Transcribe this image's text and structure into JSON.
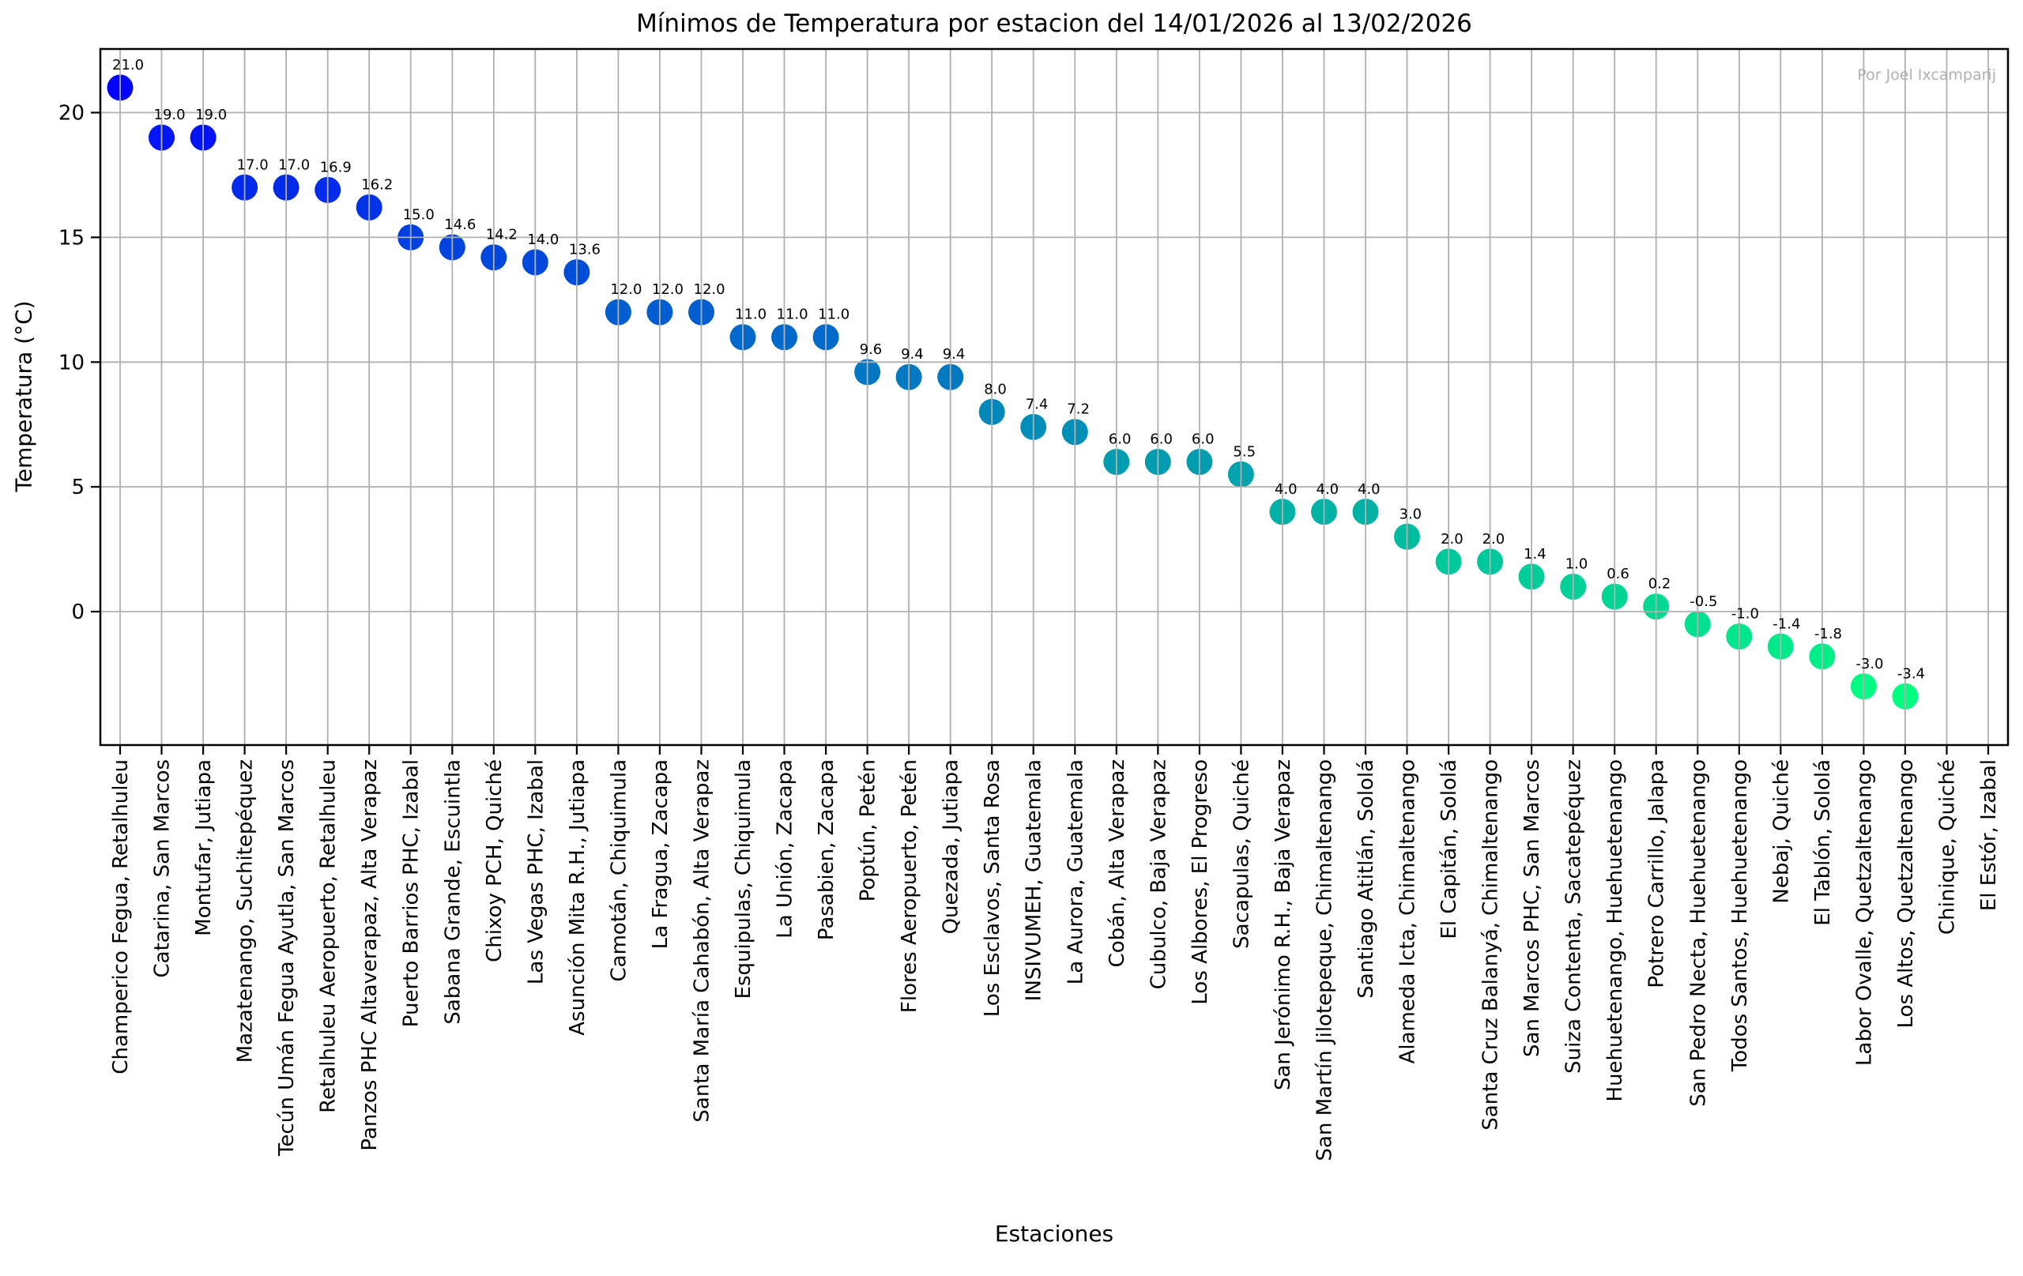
{
  "chart_data": {
    "type": "scatter",
    "title": "Mínimos de Temperatura por estacion del 14/01/2026 al 13/02/2026",
    "xlabel": "Estaciones",
    "ylabel": "Temperatura (°C)",
    "watermark": "Por Joel Ixcamparij",
    "ylim": [
      -5.35,
      22.55
    ],
    "yticks": [
      0,
      5,
      10,
      15,
      20
    ],
    "ytick_labels": [
      "0",
      "5",
      "10",
      "15",
      "20"
    ],
    "grid": true,
    "legend": "none",
    "colormap": "winter (highest temp = blue #0000ff, lowest temp = green #00ff80)",
    "value_label_format": "one decimal above each point",
    "categories": [
      "Champerico Fegua, Retalhuleu",
      "Catarina, San Marcos",
      "Montufar, Jutiapa",
      "Mazatenango, Suchitepéquez",
      "Tecún Umán Fegua Ayutla, San Marcos",
      "Retalhuleu Aeropuerto, Retalhuleu",
      "Panzos PHC Altaverapaz, Alta Verapaz",
      "Puerto Barrios PHC, Izabal",
      "Sabana Grande, Escuintla",
      "Chixoy PCH, Quiché",
      "Las Vegas PHC, Izabal",
      "Asunción Mita R.H., Jutiapa",
      "Camotán, Chiquimula",
      "La Fragua, Zacapa",
      "Santa María Cahabón, Alta Verapaz",
      "Esquipulas, Chiquimula",
      "La Unión, Zacapa",
      "Pasabien, Zacapa",
      "Poptún, Petén",
      "Flores Aeropuerto, Petén",
      "Quezada, Jutiapa",
      "Los Esclavos, Santa Rosa",
      "INSIVUMEH, Guatemala",
      "La Aurora, Guatemala",
      "Cobán, Alta Verapaz",
      "Cubulco, Baja Verapaz",
      "Los Albores, El Progreso",
      "Sacapulas, Quiché",
      "San Jerónimo R.H., Baja Verapaz",
      "San Martín Jilotepeque, Chimaltenango",
      "Santiago Atitlán, Sololá",
      "Alameda Icta, Chimaltenango",
      "El Capitán, Sololá",
      "Santa Cruz Balanyá, Chimaltenango",
      "San Marcos PHC, San Marcos",
      "Suiza Contenta, Sacatepéquez",
      "Huehuetenango, Huehuetenango",
      "Potrero Carrillo, Jalapa",
      "San Pedro Necta, Huehuetenango",
      "Todos Santos, Huehuetenango",
      "Nebaj, Quiché",
      "El Tablón, Sololá",
      "Labor Ovalle, Quetzaltenango",
      "Los Altos, Quetzaltenango",
      "Chinique, Quiché",
      "El Estór, Izabal"
    ],
    "values": [
      21.0,
      19.0,
      19.0,
      17.0,
      17.0,
      16.9,
      16.2,
      15.0,
      14.6,
      14.2,
      14.0,
      13.6,
      12.0,
      12.0,
      12.0,
      11.0,
      11.0,
      11.0,
      9.6,
      9.4,
      9.4,
      8.0,
      7.4,
      7.2,
      6.0,
      6.0,
      6.0,
      5.5,
      4.0,
      4.0,
      4.0,
      3.0,
      2.0,
      2.0,
      1.4,
      1.0,
      0.6,
      0.2,
      -0.5,
      -1.0,
      -1.4,
      -1.8,
      -3.0,
      -3.4,
      null,
      null
    ],
    "colors": {
      "grid": "#b0b0b0",
      "axes": "#000000",
      "marker_max": "#0000ff",
      "marker_mid": "#009db1",
      "marker_min": "#00ff80",
      "watermark_text": "#b0b0b0"
    }
  }
}
